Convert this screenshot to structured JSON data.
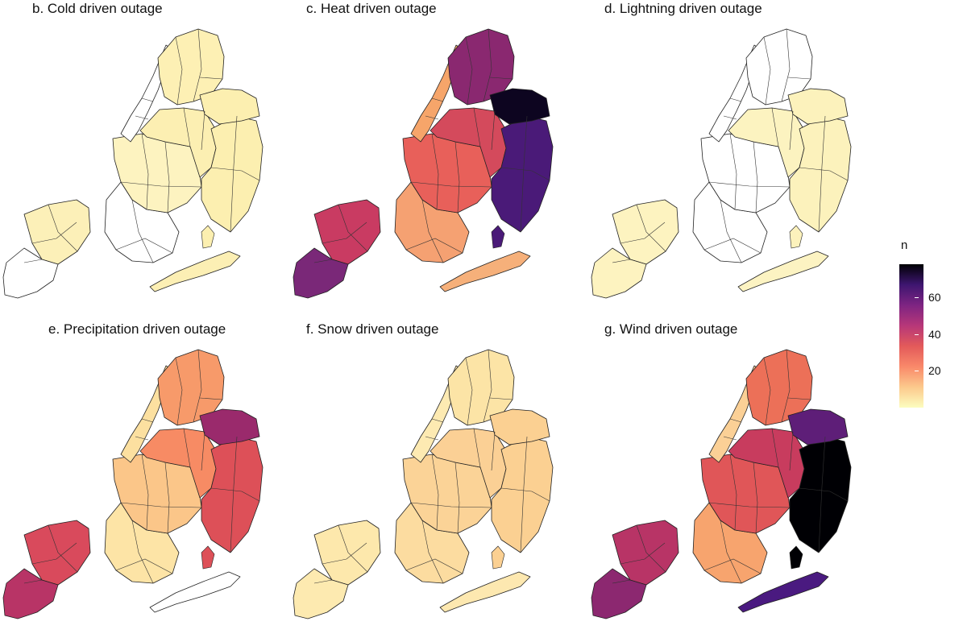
{
  "panels": [
    {
      "id": "b",
      "title": "b. Cold driven outage",
      "fills": {
        "bronx": "#fdf0b4",
        "manhattan": "#ffffff",
        "queens_w": "#fcefb2",
        "queens_e": "#fcefb0",
        "brooklyn_n": "#fdf3c0",
        "brooklyn_s": "#ffffff",
        "staten_n": "#fcf0b8",
        "staten_s": "#ffffff",
        "rockaway": "#fcefb4"
      }
    },
    {
      "id": "c",
      "title": "c. Heat driven outage",
      "fills": {
        "bronx": "#8a2870",
        "manhattan": "#f6a56a",
        "queens_w": "#d44a5c",
        "queens_e": "#4a1a78",
        "queens_ne": "#0d0520",
        "brooklyn_n": "#e8605a",
        "brooklyn_s": "#f5a172",
        "staten_n": "#c93b62",
        "staten_s": "#7a2878",
        "rockaway": "#f6b07a"
      }
    },
    {
      "id": "d",
      "title": "d. Lightning driven outage",
      "fills": {
        "bronx": "#ffffff",
        "manhattan": "#ffffff",
        "queens_w": "#fcf3c0",
        "queens_e": "#fcf2bc",
        "brooklyn_n": "#ffffff",
        "brooklyn_s": "#ffffff",
        "staten_n": "#fdf3c0",
        "staten_s": "#fdf3c0",
        "rockaway": "#fcf3c2"
      }
    },
    {
      "id": "e",
      "title": "e. Precipitation driven outage",
      "fills": {
        "bronx": "#f79a6a",
        "manhattan": "#fce0a0",
        "queens_w": "#f78b64",
        "queens_e": "#dd5058",
        "queens_ne": "#9a2a6c",
        "brooklyn_n": "#fbc689",
        "brooklyn_s": "#fde4a6",
        "staten_n": "#d94a5c",
        "staten_s": "#b83466",
        "rockaway": "#ffffff"
      }
    },
    {
      "id": "f",
      "title": "f. Snow driven outage",
      "fills": {
        "bronx": "#fce4a6",
        "manhattan": "#fdeab2",
        "queens_w": "#fbd095",
        "queens_e": "#fbd092",
        "brooklyn_n": "#fbd397",
        "brooklyn_s": "#fcdca0",
        "staten_n": "#fde8ac",
        "staten_s": "#fdeab0",
        "rockaway": "#fde8b0"
      }
    },
    {
      "id": "g",
      "title": "g. Wind driven outage",
      "fills": {
        "bronx": "#ec7058",
        "manhattan": "#fbd096",
        "queens_w": "#c83c5e",
        "queens_e": "#000004",
        "queens_ne": "#5e1e78",
        "brooklyn_n": "#e05658",
        "brooklyn_s": "#f7a46e",
        "staten_n": "#b83466",
        "staten_s": "#8c2870",
        "rockaway": "#4a1a80"
      }
    }
  ],
  "legend": {
    "title": "n",
    "ticks": [
      {
        "label": "60",
        "value": 60
      },
      {
        "label": "40",
        "value": 40
      },
      {
        "label": "20",
        "value": 20
      }
    ],
    "range": [
      0,
      78
    ],
    "colors": [
      "#fcfdbf",
      "#fcc98c",
      "#f9896a",
      "#e35a5a",
      "#b73779",
      "#7e2482",
      "#3e1670",
      "#000004"
    ]
  }
}
